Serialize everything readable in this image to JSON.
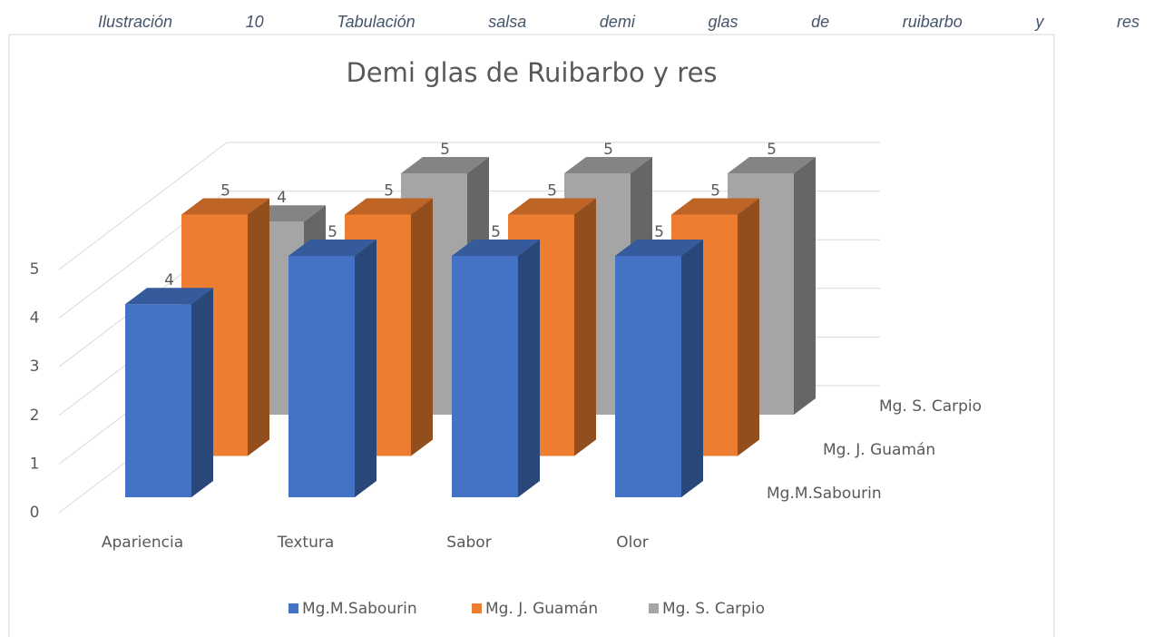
{
  "caption": "Ilustración 10 Tabulación salsa demi glas de ruibarbo y res",
  "chart_data": {
    "type": "bar3d",
    "title": "Demi glas de Ruibarbo y res",
    "categories": [
      "Apariencia",
      "Textura",
      "Sabor",
      "Olor"
    ],
    "series": [
      {
        "name": "Mg.M.Sabourin",
        "color": "#4472c4",
        "values": [
          4,
          5,
          5,
          5
        ]
      },
      {
        "name": "Mg. J. Guamán",
        "color": "#ed7d31",
        "values": [
          5,
          5,
          5,
          5
        ]
      },
      {
        "name": "Mg. S. Carpio",
        "color": "#a5a5a5",
        "values": [
          4,
          5,
          5,
          5
        ]
      }
    ],
    "ylim": [
      0,
      5
    ],
    "yticks": [
      0,
      1,
      2,
      3,
      4,
      5
    ],
    "grid": true,
    "legend": "bottom"
  }
}
